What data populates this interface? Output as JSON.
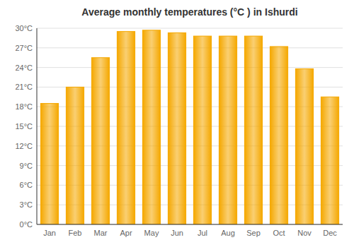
{
  "chart_data": {
    "type": "bar",
    "title": "Average monthly temperatures (°C ) in Ishurdi",
    "categories": [
      "Jan",
      "Feb",
      "Mar",
      "Apr",
      "May",
      "Jun",
      "Jul",
      "Aug",
      "Sep",
      "Oct",
      "Nov",
      "Dec"
    ],
    "values": [
      18.5,
      21.0,
      25.5,
      29.5,
      29.7,
      29.3,
      28.8,
      28.8,
      28.8,
      27.2,
      23.8,
      19.5
    ],
    "color": "#F5A800",
    "ylim": [
      0,
      30
    ],
    "yticks": [
      {
        "value": 0,
        "label": "0°C"
      },
      {
        "value": 3,
        "label": "3°C"
      },
      {
        "value": 6,
        "label": "6°C"
      },
      {
        "value": 9,
        "label": "9°C"
      },
      {
        "value": 12,
        "label": "12°C"
      },
      {
        "value": 15,
        "label": "15°C"
      },
      {
        "value": 18,
        "label": "18°C"
      },
      {
        "value": 21,
        "label": "21°C"
      },
      {
        "value": 24,
        "label": "24°C"
      },
      {
        "value": 27,
        "label": "27°C"
      },
      {
        "value": 30,
        "label": "30°C"
      }
    ],
    "grid": true
  }
}
